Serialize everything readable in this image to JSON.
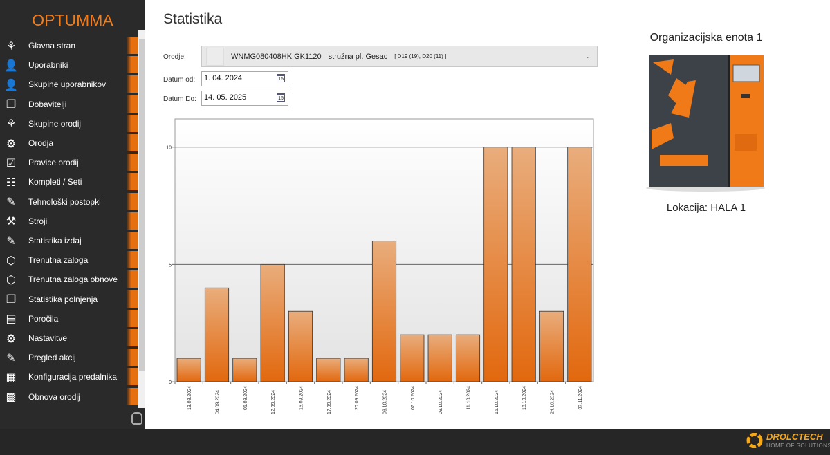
{
  "app": {
    "logo": "OPTUMMA",
    "footer_brand": "DROLCTECH",
    "footer_tagline": "HOME OF SOLUTIONS"
  },
  "sidebar": {
    "items": [
      {
        "label": "Glavna stran",
        "icon": "hierarchy-icon"
      },
      {
        "label": "Uporabniki",
        "icon": "user-icon"
      },
      {
        "label": "Skupine uporabnikov",
        "icon": "user-group-icon"
      },
      {
        "label": "Dobavitelji",
        "icon": "box-open-icon"
      },
      {
        "label": "Skupine orodij",
        "icon": "hierarchy-icon"
      },
      {
        "label": "Orodja",
        "icon": "gear-icon"
      },
      {
        "label": "Pravice orodij",
        "icon": "checkbox-icon"
      },
      {
        "label": "Kompleti / Seti",
        "icon": "sitemap-icon"
      },
      {
        "label": "Tehnološki postopki",
        "icon": "edit-note-icon"
      },
      {
        "label": "Stroji",
        "icon": "machine-icon"
      },
      {
        "label": "Statistika izdaj",
        "icon": "edit-note-icon"
      },
      {
        "label": "Trenutna zaloga",
        "icon": "package-icon"
      },
      {
        "label": "Trenutna zaloga obnove",
        "icon": "package-icon"
      },
      {
        "label": "Statistika polnjenja",
        "icon": "box-open-icon"
      },
      {
        "label": "Poročila",
        "icon": "pdf-icon"
      },
      {
        "label": "Nastavitve",
        "icon": "gear-icon"
      },
      {
        "label": "Pregled akcij",
        "icon": "edit-note-icon"
      },
      {
        "label": "Konfiguracija predalnika",
        "icon": "grid-table-icon"
      },
      {
        "label": "Obnova orodij",
        "icon": "grid-icon"
      }
    ]
  },
  "main": {
    "title": "Statistika",
    "tool_label": "Orodje:",
    "tool_code": "WNMG080408HK GK1120",
    "tool_name": "stružna pl. Gesac",
    "tool_locations": "[  D19 (19), D20 (11) ]",
    "date_from_label": "Datum od:",
    "date_from": "1. 04. 2024",
    "date_to_label": "Datum Do:",
    "date_to": "14. 05. 2025",
    "calendar_day": "15"
  },
  "machine": {
    "title": "Organizacijska enota 1",
    "location": "Lokacija: HALA 1"
  },
  "colors": {
    "accent": "#f07c1a",
    "sidebar": "#2a2a2a",
    "bar": "#e57a22"
  },
  "chart_data": {
    "type": "bar",
    "categories": [
      "13.08.2024",
      "04.09.2024",
      "05.09.2024",
      "12.09.2024",
      "16.09.2024",
      "17.09.2024",
      "20.09.2024",
      "03.10.2024",
      "07.10.2024",
      "09.10.2024",
      "11.10.2024",
      "15.10.2024",
      "18.10.2024",
      "24.10.2024",
      "07.11.2024"
    ],
    "values": [
      1,
      4,
      1,
      5,
      3,
      1,
      1,
      6,
      2,
      2,
      2,
      10,
      10,
      3,
      10
    ],
    "yticks": [
      "0",
      "5",
      "10"
    ],
    "ylim": [
      0,
      11.2
    ],
    "grid": true
  }
}
